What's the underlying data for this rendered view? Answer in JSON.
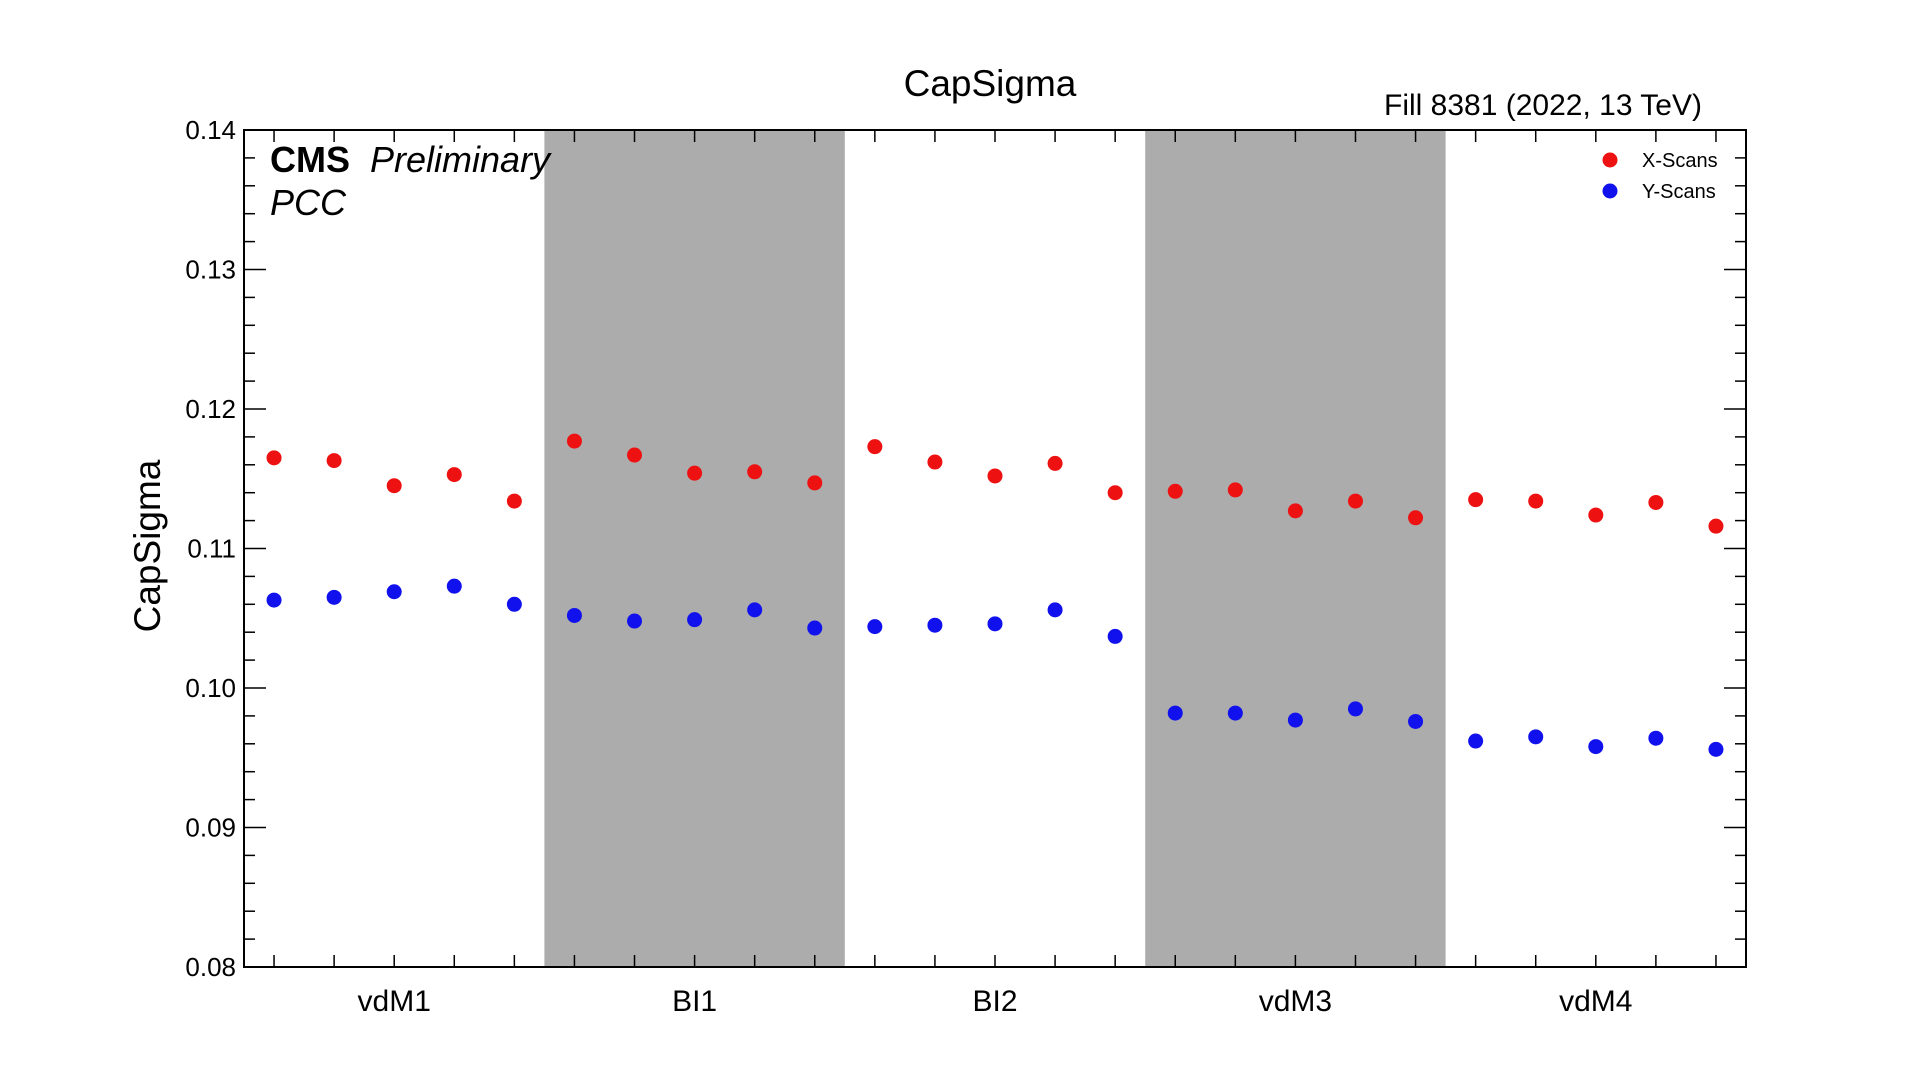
{
  "chart_data": {
    "type": "scatter",
    "title": "CapSigma",
    "ylabel": "CapSigma",
    "xlabel": "",
    "ylim": [
      0.08,
      0.14
    ],
    "yticks": [
      "0.08",
      "0.09",
      "0.10",
      "0.11",
      "0.12",
      "0.13",
      "0.14"
    ],
    "categories": [
      "vdM1",
      "BI1",
      "BI2",
      "vdM3",
      "vdM4"
    ],
    "points_per_category": 5,
    "shaded_categories": [
      "BI1",
      "vdM3"
    ],
    "shade_color": "#acacac",
    "legend_position": "top-right",
    "annotations": {
      "experiment": "CMS",
      "status": "Preliminary",
      "detector": "PCC",
      "fill_info": "Fill 8381 (2022, 13 TeV)"
    },
    "series": [
      {
        "name": "X-Scans",
        "color": "#ee1111",
        "values": [
          0.1165,
          0.1163,
          0.1145,
          0.1153,
          0.1134,
          0.1177,
          0.1167,
          0.1154,
          0.1155,
          0.1147,
          0.1173,
          0.1162,
          0.1152,
          0.1161,
          0.114,
          0.1141,
          0.1142,
          0.1127,
          0.1134,
          0.1122,
          0.1135,
          0.1134,
          0.1124,
          0.1133,
          0.1116
        ]
      },
      {
        "name": "Y-Scans",
        "color": "#1111ee",
        "values": [
          0.1063,
          0.1065,
          0.1069,
          0.1073,
          0.106,
          0.1052,
          0.1048,
          0.1049,
          0.1056,
          0.1043,
          0.1044,
          0.1045,
          0.1046,
          0.1056,
          0.1037,
          0.0982,
          0.0982,
          0.0977,
          0.0985,
          0.0976,
          0.0962,
          0.0965,
          0.0958,
          0.0964,
          0.0956
        ]
      }
    ]
  }
}
